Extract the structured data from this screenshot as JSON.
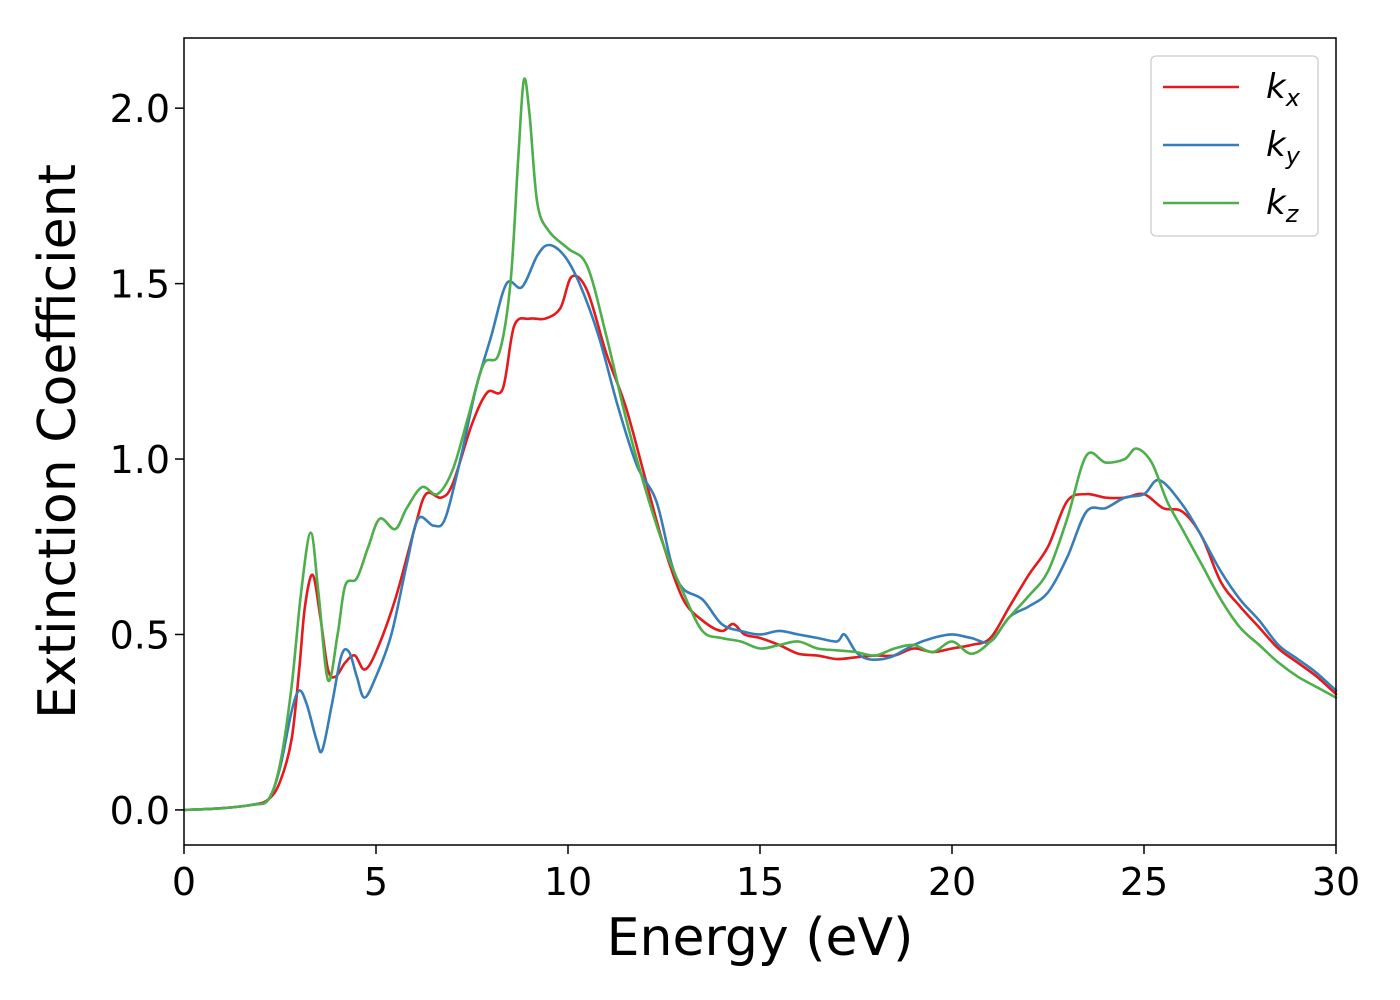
{
  "chart_data": {
    "type": "line",
    "title": "",
    "xlabel": "Energy (eV)",
    "ylabel": "Extinction Coefficient",
    "xlim": [
      0,
      30
    ],
    "ylim": [
      -0.1,
      2.2
    ],
    "xticks": [
      0,
      5,
      10,
      15,
      20,
      25,
      30
    ],
    "xtick_labels": [
      "0",
      "5",
      "10",
      "15",
      "20",
      "25",
      "30"
    ],
    "yticks": [
      0.0,
      0.5,
      1.0,
      1.5,
      2.0
    ],
    "ytick_labels": [
      "0.0",
      "0.5",
      "1.0",
      "1.5",
      "2.0"
    ],
    "grid": false,
    "legend_position": "top-right",
    "series": [
      {
        "name": "k",
        "subscript": "x",
        "color": "#e41a1c",
        "points": [
          [
            0,
            0
          ],
          [
            1,
            0.005
          ],
          [
            1.8,
            0.015
          ],
          [
            2.2,
            0.03
          ],
          [
            2.5,
            0.08
          ],
          [
            2.8,
            0.2
          ],
          [
            3.0,
            0.4
          ],
          [
            3.15,
            0.58
          ],
          [
            3.35,
            0.67
          ],
          [
            3.55,
            0.55
          ],
          [
            3.75,
            0.4
          ],
          [
            3.95,
            0.38
          ],
          [
            4.2,
            0.42
          ],
          [
            4.45,
            0.44
          ],
          [
            4.7,
            0.4
          ],
          [
            5.0,
            0.45
          ],
          [
            5.5,
            0.6
          ],
          [
            6.0,
            0.8
          ],
          [
            6.3,
            0.9
          ],
          [
            6.7,
            0.89
          ],
          [
            7.0,
            0.93
          ],
          [
            7.5,
            1.1
          ],
          [
            7.9,
            1.19
          ],
          [
            8.3,
            1.2
          ],
          [
            8.6,
            1.38
          ],
          [
            9.0,
            1.4
          ],
          [
            9.4,
            1.4
          ],
          [
            9.8,
            1.43
          ],
          [
            10.1,
            1.52
          ],
          [
            10.5,
            1.48
          ],
          [
            11.0,
            1.3
          ],
          [
            11.5,
            1.15
          ],
          [
            12.0,
            0.95
          ],
          [
            12.5,
            0.75
          ],
          [
            13.0,
            0.6
          ],
          [
            13.5,
            0.54
          ],
          [
            14.0,
            0.51
          ],
          [
            14.3,
            0.53
          ],
          [
            14.6,
            0.5
          ],
          [
            15.0,
            0.49
          ],
          [
            15.5,
            0.47
          ],
          [
            16.0,
            0.445
          ],
          [
            16.5,
            0.44
          ],
          [
            17.0,
            0.43
          ],
          [
            17.5,
            0.435
          ],
          [
            18.0,
            0.44
          ],
          [
            18.5,
            0.44
          ],
          [
            19.0,
            0.46
          ],
          [
            19.5,
            0.45
          ],
          [
            20.0,
            0.46
          ],
          [
            20.5,
            0.47
          ],
          [
            21.0,
            0.49
          ],
          [
            21.5,
            0.58
          ],
          [
            22.0,
            0.67
          ],
          [
            22.5,
            0.75
          ],
          [
            23.0,
            0.88
          ],
          [
            23.5,
            0.9
          ],
          [
            24.0,
            0.89
          ],
          [
            24.5,
            0.89
          ],
          [
            25.0,
            0.9
          ],
          [
            25.5,
            0.86
          ],
          [
            26.0,
            0.85
          ],
          [
            26.5,
            0.78
          ],
          [
            27.0,
            0.65
          ],
          [
            27.5,
            0.58
          ],
          [
            28.0,
            0.52
          ],
          [
            28.5,
            0.46
          ],
          [
            29.0,
            0.42
          ],
          [
            29.5,
            0.38
          ],
          [
            30.0,
            0.33
          ]
        ]
      },
      {
        "name": "k",
        "subscript": "y",
        "color": "#377eb8",
        "points": [
          [
            0,
            0
          ],
          [
            1,
            0.005
          ],
          [
            1.8,
            0.015
          ],
          [
            2.2,
            0.03
          ],
          [
            2.5,
            0.12
          ],
          [
            2.8,
            0.28
          ],
          [
            3.0,
            0.34
          ],
          [
            3.2,
            0.3
          ],
          [
            3.45,
            0.2
          ],
          [
            3.6,
            0.17
          ],
          [
            3.85,
            0.3
          ],
          [
            4.1,
            0.44
          ],
          [
            4.3,
            0.45
          ],
          [
            4.5,
            0.38
          ],
          [
            4.7,
            0.32
          ],
          [
            5.0,
            0.38
          ],
          [
            5.4,
            0.5
          ],
          [
            5.8,
            0.7
          ],
          [
            6.1,
            0.83
          ],
          [
            6.5,
            0.81
          ],
          [
            6.8,
            0.83
          ],
          [
            7.2,
            1.0
          ],
          [
            7.6,
            1.2
          ],
          [
            8.0,
            1.35
          ],
          [
            8.4,
            1.5
          ],
          [
            8.8,
            1.49
          ],
          [
            9.2,
            1.58
          ],
          [
            9.5,
            1.61
          ],
          [
            9.9,
            1.58
          ],
          [
            10.3,
            1.5
          ],
          [
            10.8,
            1.35
          ],
          [
            11.3,
            1.15
          ],
          [
            11.8,
            0.98
          ],
          [
            12.3,
            0.88
          ],
          [
            12.7,
            0.7
          ],
          [
            13.0,
            0.63
          ],
          [
            13.5,
            0.6
          ],
          [
            14.0,
            0.53
          ],
          [
            14.5,
            0.51
          ],
          [
            15.0,
            0.5
          ],
          [
            15.5,
            0.51
          ],
          [
            16.0,
            0.5
          ],
          [
            16.5,
            0.49
          ],
          [
            17.0,
            0.48
          ],
          [
            17.2,
            0.5
          ],
          [
            17.5,
            0.45
          ],
          [
            17.8,
            0.43
          ],
          [
            18.2,
            0.43
          ],
          [
            18.5,
            0.44
          ],
          [
            19.0,
            0.47
          ],
          [
            19.5,
            0.49
          ],
          [
            20.0,
            0.5
          ],
          [
            20.5,
            0.49
          ],
          [
            21.0,
            0.48
          ],
          [
            21.5,
            0.55
          ],
          [
            22.0,
            0.58
          ],
          [
            22.5,
            0.62
          ],
          [
            23.0,
            0.72
          ],
          [
            23.5,
            0.85
          ],
          [
            24.0,
            0.86
          ],
          [
            24.5,
            0.89
          ],
          [
            25.0,
            0.9
          ],
          [
            25.4,
            0.94
          ],
          [
            26.0,
            0.87
          ],
          [
            26.5,
            0.78
          ],
          [
            27.0,
            0.68
          ],
          [
            27.5,
            0.6
          ],
          [
            28.0,
            0.54
          ],
          [
            28.5,
            0.47
          ],
          [
            29.0,
            0.43
          ],
          [
            29.5,
            0.39
          ],
          [
            30.0,
            0.34
          ]
        ]
      },
      {
        "name": "k",
        "subscript": "z",
        "color": "#4daf4a",
        "points": [
          [
            0,
            0
          ],
          [
            1,
            0.005
          ],
          [
            1.8,
            0.015
          ],
          [
            2.2,
            0.03
          ],
          [
            2.5,
            0.13
          ],
          [
            2.8,
            0.35
          ],
          [
            3.05,
            0.62
          ],
          [
            3.3,
            0.79
          ],
          [
            3.5,
            0.62
          ],
          [
            3.75,
            0.37
          ],
          [
            4.0,
            0.5
          ],
          [
            4.2,
            0.64
          ],
          [
            4.5,
            0.66
          ],
          [
            4.8,
            0.75
          ],
          [
            5.1,
            0.83
          ],
          [
            5.5,
            0.8
          ],
          [
            5.8,
            0.86
          ],
          [
            6.2,
            0.92
          ],
          [
            6.6,
            0.9
          ],
          [
            7.0,
            0.97
          ],
          [
            7.4,
            1.12
          ],
          [
            7.8,
            1.27
          ],
          [
            8.2,
            1.3
          ],
          [
            8.5,
            1.5
          ],
          [
            8.7,
            1.85
          ],
          [
            8.85,
            2.08
          ],
          [
            9.0,
            1.98
          ],
          [
            9.2,
            1.73
          ],
          [
            9.5,
            1.65
          ],
          [
            10.0,
            1.6
          ],
          [
            10.5,
            1.55
          ],
          [
            11.0,
            1.35
          ],
          [
            11.5,
            1.12
          ],
          [
            12.0,
            0.92
          ],
          [
            12.5,
            0.75
          ],
          [
            13.0,
            0.62
          ],
          [
            13.5,
            0.51
          ],
          [
            14.0,
            0.49
          ],
          [
            14.5,
            0.48
          ],
          [
            15.0,
            0.46
          ],
          [
            15.5,
            0.47
          ],
          [
            16.0,
            0.48
          ],
          [
            16.5,
            0.46
          ],
          [
            17.0,
            0.455
          ],
          [
            17.5,
            0.45
          ],
          [
            18.0,
            0.44
          ],
          [
            18.5,
            0.46
          ],
          [
            19.0,
            0.47
          ],
          [
            19.5,
            0.45
          ],
          [
            20.0,
            0.48
          ],
          [
            20.5,
            0.445
          ],
          [
            21.0,
            0.48
          ],
          [
            21.5,
            0.55
          ],
          [
            22.0,
            0.61
          ],
          [
            22.5,
            0.68
          ],
          [
            23.0,
            0.83
          ],
          [
            23.5,
            1.01
          ],
          [
            24.0,
            0.99
          ],
          [
            24.5,
            1.0
          ],
          [
            24.8,
            1.03
          ],
          [
            25.2,
            0.99
          ],
          [
            25.6,
            0.88
          ],
          [
            26.0,
            0.8
          ],
          [
            26.5,
            0.7
          ],
          [
            27.0,
            0.6
          ],
          [
            27.5,
            0.52
          ],
          [
            28.0,
            0.47
          ],
          [
            28.5,
            0.42
          ],
          [
            29.0,
            0.38
          ],
          [
            29.5,
            0.35
          ],
          [
            30.0,
            0.32
          ]
        ]
      }
    ]
  }
}
